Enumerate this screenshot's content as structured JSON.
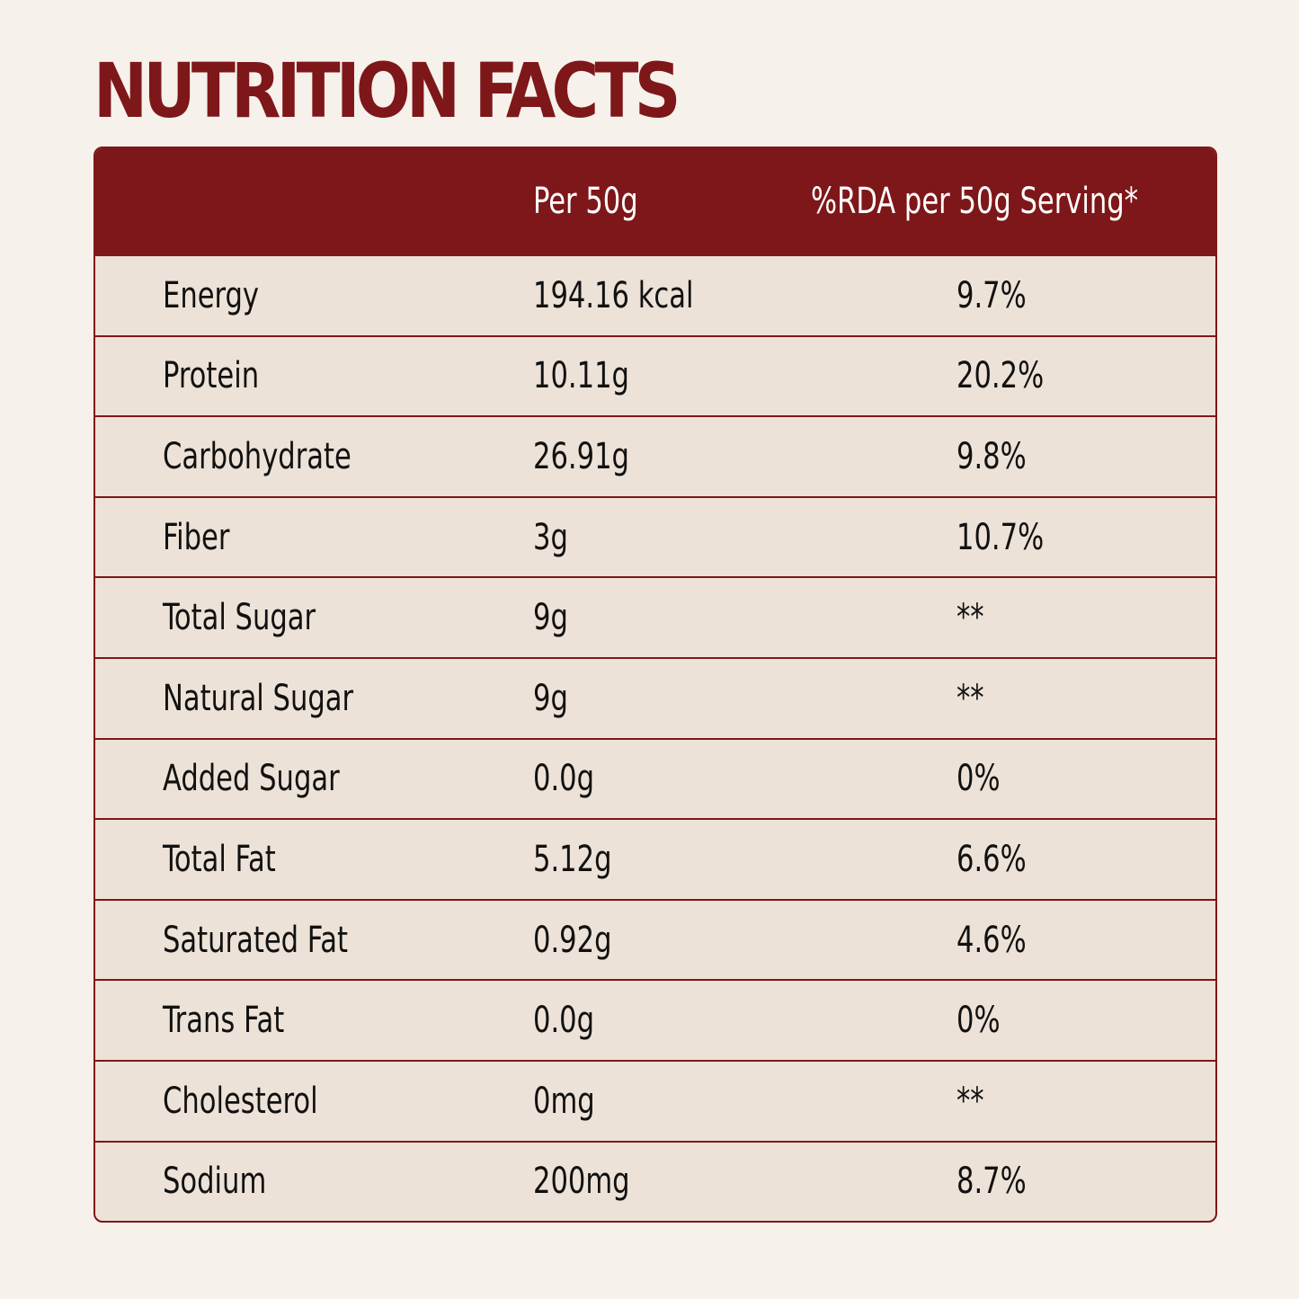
{
  "header": {
    "title": "NUTRITION FACTS"
  },
  "table": {
    "columns": [
      "",
      "Per 50g",
      "%RDA per 50g Serving*"
    ],
    "rows": [
      [
        "Energy",
        "194.16 kcal",
        "9.7%"
      ],
      [
        "Protein",
        "10.11g",
        "20.2%"
      ],
      [
        "Carbohydrate",
        "26.91g",
        "9.8%"
      ],
      [
        "Fiber",
        "3g",
        "10.7%"
      ],
      [
        "Total Sugar",
        "9g",
        "**"
      ],
      [
        "Natural Sugar",
        "9g",
        "**"
      ],
      [
        "Added Sugar",
        "0.0g",
        "0%"
      ],
      [
        "Total Fat",
        "5.12g",
        "6.6%"
      ],
      [
        "Saturated Fat",
        "0.92g",
        "4.6%"
      ],
      [
        "Trans Fat",
        "0.0g",
        "0%"
      ],
      [
        "Cholesterol",
        "0mg",
        "**"
      ],
      [
        "Sodium",
        "200mg",
        "8.7%"
      ]
    ]
  }
}
